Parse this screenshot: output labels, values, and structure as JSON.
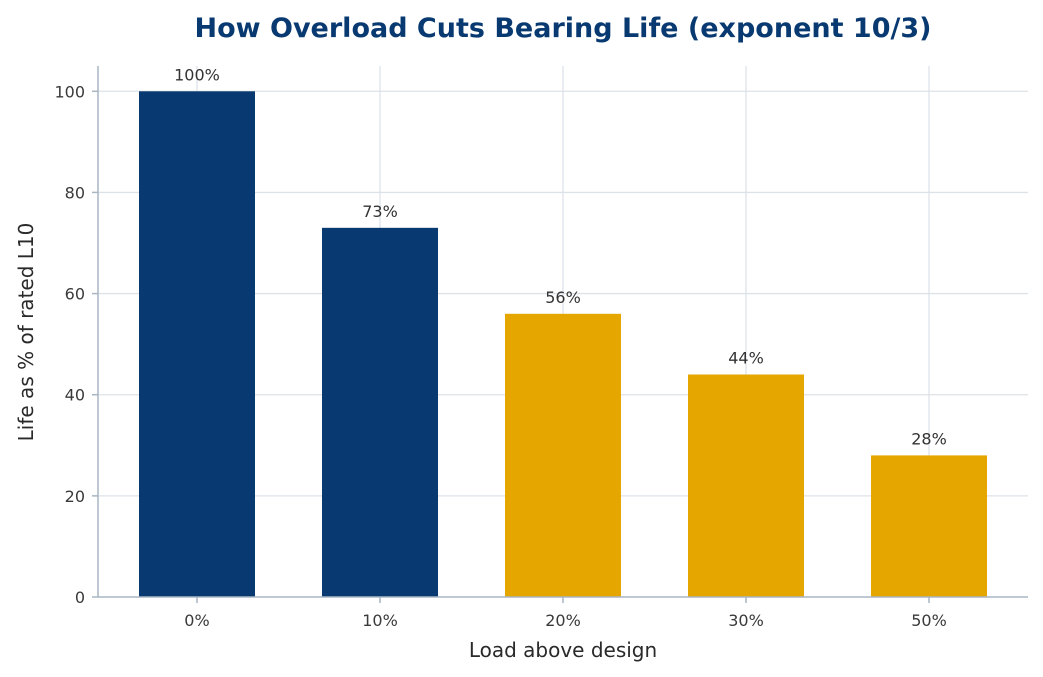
{
  "chart_data": {
    "type": "bar",
    "title": "How Overload Cuts Bearing Life (exponent 10/3)",
    "xlabel": "Load above design",
    "ylabel": "Life as % of rated L10",
    "categories": [
      "0%",
      "10%",
      "20%",
      "30%",
      "50%"
    ],
    "values": [
      100,
      73,
      56,
      44,
      28
    ],
    "data_labels": [
      "100%",
      "73%",
      "56%",
      "44%",
      "28%"
    ],
    "bar_colors": [
      "#083a71",
      "#083a71",
      "#e6a600",
      "#e6a600",
      "#e6a600"
    ],
    "ylim": [
      0,
      105
    ],
    "yticks": [
      0,
      20,
      40,
      60,
      80,
      100
    ],
    "grid": true,
    "legend": "none"
  }
}
